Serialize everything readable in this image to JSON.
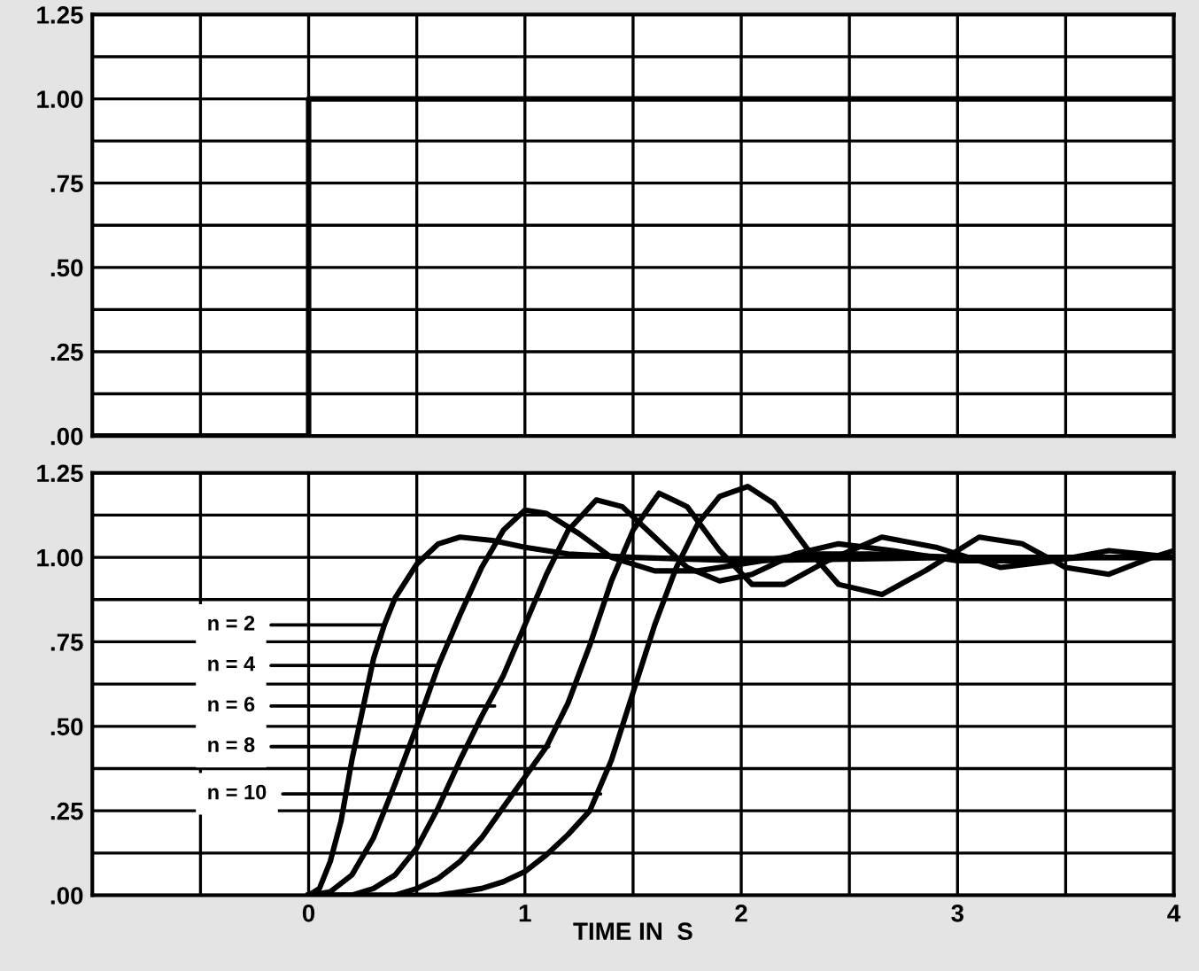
{
  "chart_data": [
    {
      "type": "step",
      "x": [
        -1,
        0,
        4
      ],
      "series": [
        {
          "color": "#000000",
          "values": [
            0,
            1,
            1
          ]
        }
      ],
      "xlim": [
        -1,
        4
      ],
      "ylim": [
        0,
        1.25
      ],
      "xticks": [
        {
          "value": -1,
          "label": null
        },
        {
          "value": -0.5,
          "label": null
        },
        {
          "value": 0,
          "label": null
        },
        {
          "value": 0.5,
          "label": null
        },
        {
          "value": 1,
          "label": null
        },
        {
          "value": 1.5,
          "label": null
        },
        {
          "value": 2,
          "label": null
        },
        {
          "value": 2.5,
          "label": null
        },
        {
          "value": 3,
          "label": null
        },
        {
          "value": 3.5,
          "label": null
        },
        {
          "value": 4,
          "label": null
        }
      ],
      "yticks": [
        {
          "value": 0,
          "label": ".00"
        },
        {
          "value": 0.125,
          "label": null
        },
        {
          "value": 0.25,
          "label": ".25"
        },
        {
          "value": 0.375,
          "label": null
        },
        {
          "value": 0.5,
          "label": ".50"
        },
        {
          "value": 0.625,
          "label": null
        },
        {
          "value": 0.75,
          "label": ".75"
        },
        {
          "value": 0.875,
          "label": null
        },
        {
          "value": 1,
          "label": "1.00"
        },
        {
          "value": 1.125,
          "label": null
        },
        {
          "value": 1.25,
          "label": "1.25"
        }
      ],
      "tick_labels": "y",
      "grid": true,
      "legend": false
    },
    {
      "type": "line",
      "xlabel": "TIME IN  S",
      "series": [
        {
          "color": "#000000",
          "x": [
            0,
            0.05,
            0.1,
            0.15,
            0.2,
            0.25,
            0.3,
            0.35,
            0.4,
            0.5,
            0.6,
            0.7,
            0.85,
            1.0,
            1.2,
            1.5,
            2,
            3,
            4
          ],
          "values": [
            0,
            0.02,
            0.1,
            0.22,
            0.4,
            0.55,
            0.7,
            0.8,
            0.88,
            0.98,
            1.04,
            1.06,
            1.05,
            1.03,
            1.01,
            1.0,
            0.99,
            1.0,
            1.0
          ]
        },
        {
          "color": "#000000",
          "x": [
            0,
            0.1,
            0.2,
            0.3,
            0.4,
            0.5,
            0.6,
            0.7,
            0.8,
            0.9,
            1.0,
            1.1,
            1.25,
            1.4,
            1.6,
            1.8,
            2.0,
            2.3,
            2.6,
            3.0,
            4
          ],
          "values": [
            0,
            0.01,
            0.06,
            0.17,
            0.33,
            0.5,
            0.68,
            0.83,
            0.97,
            1.08,
            1.14,
            1.13,
            1.07,
            1.0,
            0.96,
            0.96,
            0.98,
            1.01,
            1.01,
            1.0,
            1.0
          ]
        },
        {
          "color": "#000000",
          "x": [
            0,
            0.2,
            0.3,
            0.4,
            0.5,
            0.6,
            0.7,
            0.8,
            0.9,
            1.0,
            1.1,
            1.2,
            1.33,
            1.45,
            1.6,
            1.75,
            1.9,
            2.05,
            2.25,
            2.45,
            2.7,
            3.0,
            3.3,
            3.6,
            4
          ],
          "values": [
            0,
            0,
            0.02,
            0.06,
            0.14,
            0.26,
            0.4,
            0.53,
            0.65,
            0.8,
            0.95,
            1.08,
            1.17,
            1.15,
            1.06,
            0.97,
            0.93,
            0.95,
            1.01,
            1.04,
            1.02,
            0.99,
            0.99,
            1.0,
            1.0
          ]
        },
        {
          "color": "#000000",
          "x": [
            0,
            0.4,
            0.5,
            0.6,
            0.7,
            0.8,
            0.9,
            1.0,
            1.1,
            1.2,
            1.3,
            1.4,
            1.5,
            1.62,
            1.75,
            1.9,
            2.05,
            2.2,
            2.4,
            2.65,
            2.9,
            3.2,
            3.45,
            3.7,
            4
          ],
          "values": [
            0,
            0,
            0.02,
            0.05,
            0.1,
            0.17,
            0.26,
            0.35,
            0.44,
            0.57,
            0.74,
            0.93,
            1.08,
            1.19,
            1.15,
            1.02,
            0.92,
            0.92,
            0.99,
            1.06,
            1.03,
            0.97,
            0.99,
            1.02,
            1.0
          ]
        },
        {
          "color": "#000000",
          "x": [
            0,
            0.6,
            0.8,
            0.9,
            1.0,
            1.1,
            1.2,
            1.3,
            1.4,
            1.5,
            1.6,
            1.7,
            1.8,
            1.9,
            2.03,
            2.15,
            2.3,
            2.45,
            2.65,
            2.85,
            3.1,
            3.3,
            3.5,
            3.7,
            3.9,
            4
          ],
          "values": [
            0,
            0,
            0.02,
            0.04,
            0.07,
            0.12,
            0.18,
            0.25,
            0.4,
            0.6,
            0.8,
            0.97,
            1.1,
            1.18,
            1.21,
            1.16,
            1.03,
            0.92,
            0.89,
            0.96,
            1.06,
            1.04,
            0.97,
            0.95,
            1.0,
            1.02
          ]
        }
      ],
      "annotations": [
        {
          "text": "n = 2",
          "x": 0.35,
          "y": 0.8
        },
        {
          "text": "n = 4",
          "x": 0.6,
          "y": 0.68
        },
        {
          "text": "n = 6",
          "x": 0.86,
          "y": 0.56
        },
        {
          "text": "n = 8",
          "x": 1.11,
          "y": 0.44
        },
        {
          "text": "n = 10",
          "x": 1.35,
          "y": 0.3
        }
      ],
      "xlim": [
        -1,
        4
      ],
      "ylim": [
        0,
        1.25
      ],
      "xticks": [
        {
          "value": -1,
          "label": null
        },
        {
          "value": -0.5,
          "label": null
        },
        0,
        {
          "value": 0.5,
          "label": null
        },
        1,
        {
          "value": 1.5,
          "label": null
        },
        2,
        {
          "value": 2.5,
          "label": null
        },
        3,
        {
          "value": 3.5,
          "label": null
        },
        4
      ],
      "yticks": [
        {
          "value": 0,
          "label": ".00"
        },
        {
          "value": 0.125,
          "label": null
        },
        {
          "value": 0.25,
          "label": ".25"
        },
        {
          "value": 0.375,
          "label": null
        },
        {
          "value": 0.5,
          "label": ".50"
        },
        {
          "value": 0.625,
          "label": null
        },
        {
          "value": 0.75,
          "label": ".75"
        },
        {
          "value": 0.875,
          "label": null
        },
        {
          "value": 1,
          "label": "1.00"
        },
        {
          "value": 1.125,
          "label": null
        },
        {
          "value": 1.25,
          "label": "1.25"
        }
      ],
      "grid": true,
      "legend": false
    }
  ]
}
